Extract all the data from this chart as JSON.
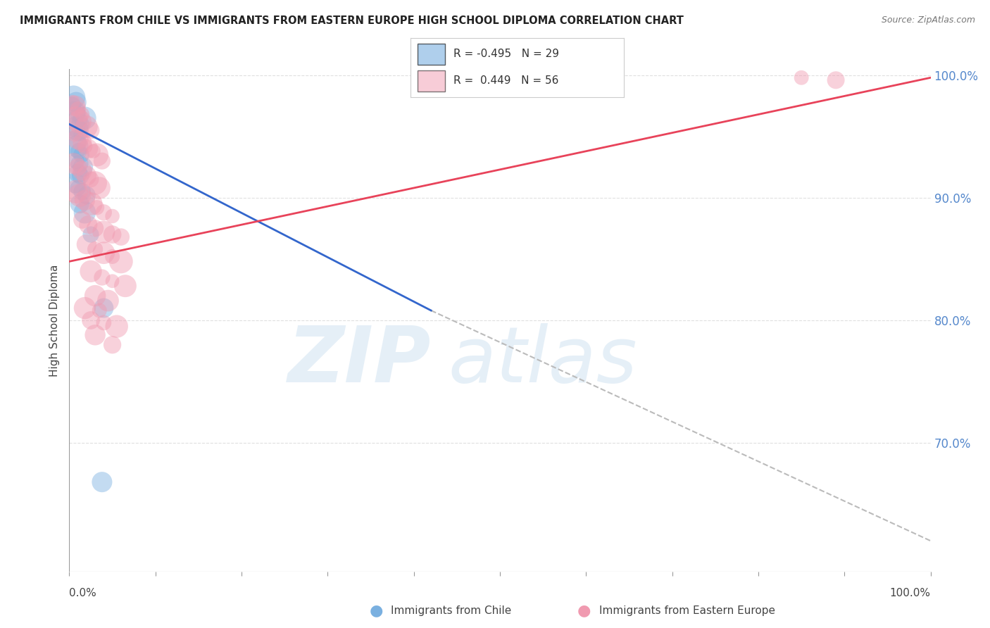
{
  "title": "IMMIGRANTS FROM CHILE VS IMMIGRANTS FROM EASTERN EUROPE HIGH SCHOOL DIPLOMA CORRELATION CHART",
  "source": "Source: ZipAtlas.com",
  "ylabel": "High School Diploma",
  "legend_blue_r": "-0.495",
  "legend_blue_n": "29",
  "legend_pink_r": "0.449",
  "legend_pink_n": "56",
  "blue_color": "#7ab0e0",
  "pink_color": "#f09ab0",
  "blue_scatter": [
    [
      0.003,
      0.975
    ],
    [
      0.005,
      0.982
    ],
    [
      0.006,
      0.97
    ],
    [
      0.008,
      0.978
    ],
    [
      0.01,
      0.968
    ],
    [
      0.012,
      0.963
    ],
    [
      0.015,
      0.96
    ],
    [
      0.018,
      0.965
    ],
    [
      0.007,
      0.958
    ],
    [
      0.01,
      0.955
    ],
    [
      0.013,
      0.952
    ],
    [
      0.006,
      0.945
    ],
    [
      0.009,
      0.942
    ],
    [
      0.011,
      0.938
    ],
    [
      0.014,
      0.935
    ],
    [
      0.008,
      0.93
    ],
    [
      0.012,
      0.928
    ],
    [
      0.016,
      0.925
    ],
    [
      0.01,
      0.92
    ],
    [
      0.013,
      0.918
    ],
    [
      0.007,
      0.912
    ],
    [
      0.01,
      0.908
    ],
    [
      0.015,
      0.905
    ],
    [
      0.02,
      0.902
    ],
    [
      0.012,
      0.895
    ],
    [
      0.018,
      0.888
    ],
    [
      0.025,
      0.87
    ],
    [
      0.04,
      0.81
    ],
    [
      0.038,
      0.668
    ]
  ],
  "pink_scatter": [
    [
      0.004,
      0.978
    ],
    [
      0.007,
      0.975
    ],
    [
      0.01,
      0.972
    ],
    [
      0.015,
      0.968
    ],
    [
      0.008,
      0.965
    ],
    [
      0.012,
      0.962
    ],
    [
      0.02,
      0.958
    ],
    [
      0.025,
      0.955
    ],
    [
      0.006,
      0.952
    ],
    [
      0.01,
      0.948
    ],
    [
      0.015,
      0.945
    ],
    [
      0.018,
      0.942
    ],
    [
      0.022,
      0.94
    ],
    [
      0.028,
      0.938
    ],
    [
      0.032,
      0.935
    ],
    [
      0.038,
      0.93
    ],
    [
      0.005,
      0.928
    ],
    [
      0.01,
      0.925
    ],
    [
      0.015,
      0.922
    ],
    [
      0.02,
      0.918
    ],
    [
      0.025,
      0.915
    ],
    [
      0.03,
      0.912
    ],
    [
      0.035,
      0.908
    ],
    [
      0.008,
      0.905
    ],
    [
      0.012,
      0.902
    ],
    [
      0.018,
      0.898
    ],
    [
      0.025,
      0.895
    ],
    [
      0.032,
      0.892
    ],
    [
      0.04,
      0.888
    ],
    [
      0.05,
      0.885
    ],
    [
      0.015,
      0.882
    ],
    [
      0.022,
      0.878
    ],
    [
      0.03,
      0.875
    ],
    [
      0.04,
      0.872
    ],
    [
      0.05,
      0.87
    ],
    [
      0.06,
      0.868
    ],
    [
      0.02,
      0.862
    ],
    [
      0.03,
      0.858
    ],
    [
      0.04,
      0.855
    ],
    [
      0.05,
      0.852
    ],
    [
      0.06,
      0.848
    ],
    [
      0.025,
      0.84
    ],
    [
      0.038,
      0.835
    ],
    [
      0.05,
      0.832
    ],
    [
      0.065,
      0.828
    ],
    [
      0.03,
      0.82
    ],
    [
      0.045,
      0.816
    ],
    [
      0.018,
      0.81
    ],
    [
      0.035,
      0.808
    ],
    [
      0.025,
      0.8
    ],
    [
      0.04,
      0.798
    ],
    [
      0.055,
      0.795
    ],
    [
      0.03,
      0.788
    ],
    [
      0.05,
      0.78
    ],
    [
      0.85,
      0.998
    ],
    [
      0.89,
      0.996
    ]
  ],
  "blue_line_x": [
    0.0,
    0.42
  ],
  "blue_line_y": [
    0.96,
    0.808
  ],
  "pink_line_x": [
    0.0,
    1.0
  ],
  "pink_line_y": [
    0.848,
    0.998
  ],
  "dashed_line_x": [
    0.42,
    1.0
  ],
  "dashed_line_y": [
    0.808,
    0.62
  ],
  "watermark_zip": "ZIP",
  "watermark_atlas": "atlas",
  "background_color": "#ffffff",
  "grid_color": "#e0e0e0",
  "xmin": 0.0,
  "xmax": 1.0,
  "ymin": 0.595,
  "ymax": 1.005,
  "yticks": [
    0.7,
    0.8,
    0.9,
    1.0
  ],
  "ytick_labels": [
    "70.0%",
    "80.0%",
    "90.0%",
    "100.0%"
  ]
}
